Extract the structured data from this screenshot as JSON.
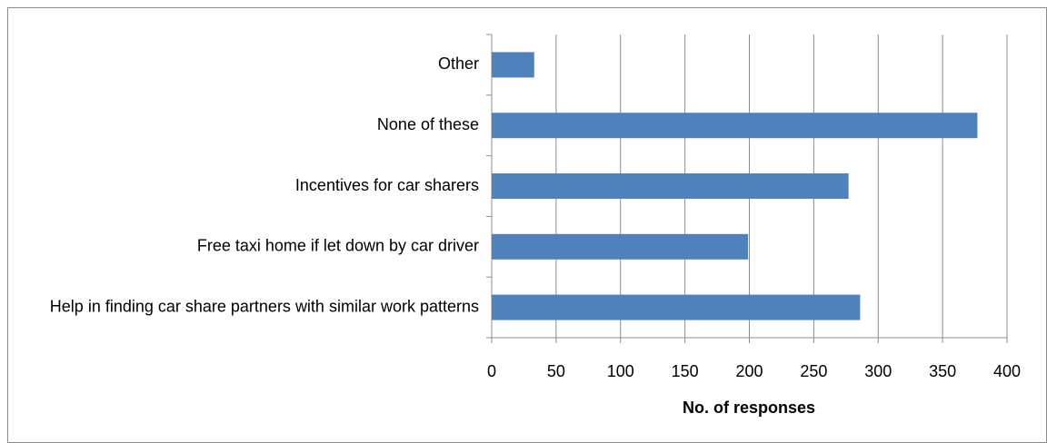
{
  "chart_data": {
    "type": "bar",
    "orientation": "horizontal",
    "categories": [
      "Other",
      "None of these",
      "Incentives for car sharers",
      "Free taxi home if let down by car driver",
      "Help in finding car share partners with similar work patterns"
    ],
    "values": [
      33,
      377,
      277,
      199,
      286
    ],
    "color": "#4f81bd",
    "xlabel": "No. of responses",
    "xlim": [
      0,
      400
    ],
    "xticks": [
      0,
      50,
      100,
      150,
      200,
      250,
      300,
      350,
      400
    ],
    "grid": true
  }
}
